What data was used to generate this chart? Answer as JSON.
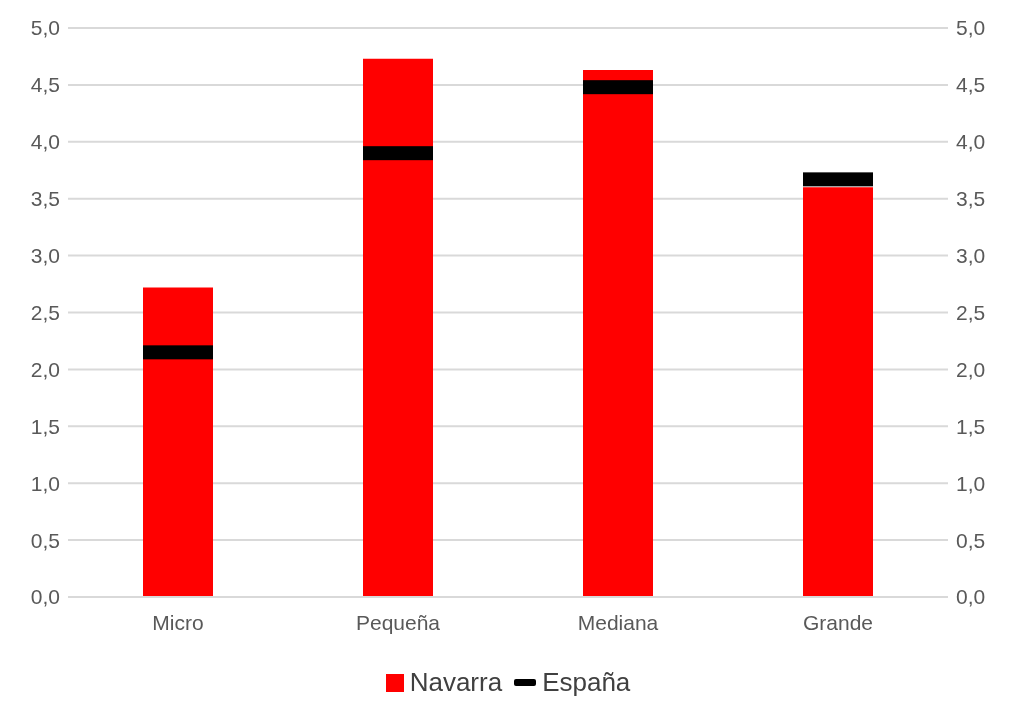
{
  "chart_data": {
    "type": "bar",
    "categories": [
      "Micro",
      "Pequeña",
      "Mediana",
      "Grande"
    ],
    "series": [
      {
        "name": "Navarra",
        "color": "#ff0000",
        "values": [
          2.72,
          4.73,
          4.63,
          3.6
        ]
      },
      {
        "name": "España",
        "type": "scatter",
        "color": "#000000",
        "values": [
          2.15,
          3.9,
          4.48,
          3.67
        ]
      }
    ],
    "ylim": [
      0,
      5
    ],
    "yticks": [
      {
        "value": 0,
        "label": "0,0"
      },
      {
        "value": 0.5,
        "label": "0,5"
      },
      {
        "value": 1,
        "label": "1,0"
      },
      {
        "value": 1.5,
        "label": "1,5"
      },
      {
        "value": 2,
        "label": "2,0"
      },
      {
        "value": 2.5,
        "label": "2,5"
      },
      {
        "value": 3,
        "label": "3,0"
      },
      {
        "value": 3.5,
        "label": "3,5"
      },
      {
        "value": 4,
        "label": "4,0"
      },
      {
        "value": 4.5,
        "label": "4,5"
      },
      {
        "value": 5,
        "label": "5,0"
      }
    ],
    "y2lim": [
      0,
      5
    ],
    "y2ticks": [
      {
        "value": 0,
        "label": "0,0"
      },
      {
        "value": 0.5,
        "label": "0,5"
      },
      {
        "value": 1,
        "label": "1,0"
      },
      {
        "value": 1.5,
        "label": "1,5"
      },
      {
        "value": 2,
        "label": "2,0"
      },
      {
        "value": 2.5,
        "label": "2,5"
      },
      {
        "value": 3,
        "label": "3,0"
      },
      {
        "value": 3.5,
        "label": "3,5"
      },
      {
        "value": 4,
        "label": "4,0"
      },
      {
        "value": 4.5,
        "label": "4,5"
      },
      {
        "value": 5,
        "label": "5,0"
      }
    ],
    "grid": "y",
    "legend": "bottom"
  }
}
